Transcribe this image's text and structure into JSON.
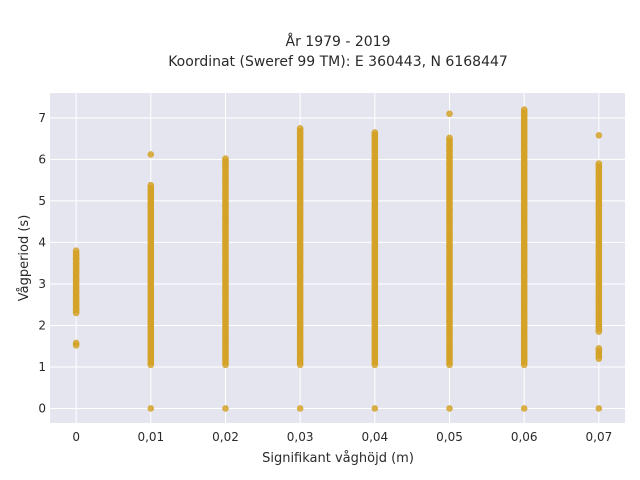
{
  "chart_data": {
    "type": "scatter",
    "title_lines": [
      "År 1979 - 2019",
      "Koordinat (Sweref 99 TM): E 360443, N 6168447"
    ],
    "xlabel": "Signifikant våghöjd (m)",
    "ylabel": "Vågperiod (s)",
    "x_ticks": [
      0,
      0.01,
      0.02,
      0.03,
      0.04,
      0.05,
      0.06,
      0.07
    ],
    "x_tick_labels": [
      "0",
      "0,01",
      "0,02",
      "0,03",
      "0,04",
      "0,05",
      "0,06",
      "0,07"
    ],
    "y_ticks": [
      0,
      1,
      2,
      3,
      4,
      5,
      6,
      7
    ],
    "y_tick_labels": [
      "0",
      "1",
      "2",
      "3",
      "4",
      "5",
      "6",
      "7"
    ],
    "xlim": [
      -0.0035,
      0.0735
    ],
    "ylim": [
      -0.35,
      7.6
    ],
    "grid": true,
    "legend": false,
    "colors": {
      "point": "#d4a227",
      "plot_bg": "#e5e5f0",
      "grid": "#ffffff"
    },
    "series": [
      {
        "points": [
          [
            0,
            1.52
          ],
          [
            0,
            1.58
          ],
          [
            0,
            2.3
          ],
          [
            0,
            2.4
          ],
          [
            0,
            2.5
          ],
          [
            0,
            2.6
          ],
          [
            0,
            2.7
          ],
          [
            0,
            2.8
          ],
          [
            0,
            3.1
          ],
          [
            0,
            3.3
          ],
          [
            0,
            3.4
          ],
          [
            0,
            3.5
          ],
          [
            0,
            3.6
          ],
          [
            0,
            3.7
          ],
          [
            0,
            3.8
          ],
          [
            0.01,
            0
          ],
          [
            0.01,
            1.05
          ],
          [
            0.01,
            1.15
          ],
          [
            0.01,
            1.3
          ],
          [
            0.01,
            1.45
          ],
          [
            0.01,
            1.6
          ],
          [
            0.01,
            1.8
          ],
          [
            0.01,
            2.0
          ],
          [
            0.01,
            2.3
          ],
          [
            0.01,
            2.6
          ],
          [
            0.01,
            2.9
          ],
          [
            0.01,
            3.2
          ],
          [
            0.01,
            3.5
          ],
          [
            0.01,
            3.8
          ],
          [
            0.01,
            4.1
          ],
          [
            0.01,
            4.4
          ],
          [
            0.01,
            4.6
          ],
          [
            0.01,
            4.8
          ],
          [
            0.01,
            4.9
          ],
          [
            0.01,
            5.05
          ],
          [
            0.01,
            5.38
          ],
          [
            0.01,
            6.12
          ],
          [
            0.02,
            0
          ],
          [
            0.02,
            1.05
          ],
          [
            0.02,
            1.2
          ],
          [
            0.02,
            1.4
          ],
          [
            0.02,
            1.6
          ],
          [
            0.02,
            1.9
          ],
          [
            0.02,
            2.2
          ],
          [
            0.02,
            2.5
          ],
          [
            0.02,
            2.8
          ],
          [
            0.02,
            3.1
          ],
          [
            0.02,
            3.4
          ],
          [
            0.02,
            3.7
          ],
          [
            0.02,
            4.0
          ],
          [
            0.02,
            4.3
          ],
          [
            0.02,
            4.6
          ],
          [
            0.02,
            4.9
          ],
          [
            0.02,
            5.2
          ],
          [
            0.02,
            5.5
          ],
          [
            0.02,
            5.8
          ],
          [
            0.02,
            5.95
          ],
          [
            0.02,
            6.02
          ],
          [
            0.03,
            0
          ],
          [
            0.03,
            1.05
          ],
          [
            0.03,
            1.2
          ],
          [
            0.03,
            1.4
          ],
          [
            0.03,
            1.7
          ],
          [
            0.03,
            2.0
          ],
          [
            0.03,
            2.3
          ],
          [
            0.03,
            2.6
          ],
          [
            0.03,
            2.9
          ],
          [
            0.03,
            3.2
          ],
          [
            0.03,
            3.5
          ],
          [
            0.03,
            3.8
          ],
          [
            0.03,
            4.1
          ],
          [
            0.03,
            4.4
          ],
          [
            0.03,
            4.7
          ],
          [
            0.03,
            5.0
          ],
          [
            0.03,
            5.3
          ],
          [
            0.03,
            5.6
          ],
          [
            0.03,
            5.9
          ],
          [
            0.03,
            6.1
          ],
          [
            0.03,
            6.3
          ],
          [
            0.03,
            6.45
          ],
          [
            0.03,
            6.62
          ],
          [
            0.03,
            6.75
          ],
          [
            0.04,
            0
          ],
          [
            0.04,
            1.05
          ],
          [
            0.04,
            1.2
          ],
          [
            0.04,
            1.5
          ],
          [
            0.04,
            1.8
          ],
          [
            0.04,
            2.1
          ],
          [
            0.04,
            2.4
          ],
          [
            0.04,
            2.7
          ],
          [
            0.04,
            3.0
          ],
          [
            0.04,
            3.3
          ],
          [
            0.04,
            3.6
          ],
          [
            0.04,
            3.9
          ],
          [
            0.04,
            4.2
          ],
          [
            0.04,
            4.5
          ],
          [
            0.04,
            4.8
          ],
          [
            0.04,
            5.1
          ],
          [
            0.04,
            5.4
          ],
          [
            0.04,
            5.7
          ],
          [
            0.04,
            6.0
          ],
          [
            0.04,
            6.2
          ],
          [
            0.04,
            6.38
          ],
          [
            0.04,
            6.6
          ],
          [
            0.04,
            6.65
          ],
          [
            0.05,
            0
          ],
          [
            0.05,
            1.05
          ],
          [
            0.05,
            1.2
          ],
          [
            0.05,
            1.5
          ],
          [
            0.05,
            1.8
          ],
          [
            0.05,
            2.1
          ],
          [
            0.05,
            2.4
          ],
          [
            0.05,
            2.7
          ],
          [
            0.05,
            3.0
          ],
          [
            0.05,
            3.3
          ],
          [
            0.05,
            3.6
          ],
          [
            0.05,
            3.9
          ],
          [
            0.05,
            4.2
          ],
          [
            0.05,
            4.5
          ],
          [
            0.05,
            4.8
          ],
          [
            0.05,
            5.1
          ],
          [
            0.05,
            5.4
          ],
          [
            0.05,
            5.7
          ],
          [
            0.05,
            5.9
          ],
          [
            0.05,
            6.05
          ],
          [
            0.05,
            6.2
          ],
          [
            0.05,
            6.35
          ],
          [
            0.05,
            6.52
          ],
          [
            0.05,
            7.1
          ],
          [
            0.06,
            0
          ],
          [
            0.06,
            1.05
          ],
          [
            0.06,
            1.15
          ],
          [
            0.06,
            1.3
          ],
          [
            0.06,
            1.45
          ],
          [
            0.06,
            1.7
          ],
          [
            0.06,
            2.0
          ],
          [
            0.06,
            2.3
          ],
          [
            0.06,
            2.6
          ],
          [
            0.06,
            2.9
          ],
          [
            0.06,
            3.2
          ],
          [
            0.06,
            3.5
          ],
          [
            0.06,
            3.8
          ],
          [
            0.06,
            4.1
          ],
          [
            0.06,
            4.4
          ],
          [
            0.06,
            4.7
          ],
          [
            0.06,
            5.0
          ],
          [
            0.06,
            5.3
          ],
          [
            0.06,
            5.6
          ],
          [
            0.06,
            5.9
          ],
          [
            0.06,
            6.2
          ],
          [
            0.06,
            6.45
          ],
          [
            0.06,
            6.65
          ],
          [
            0.06,
            6.9
          ],
          [
            0.06,
            7.05
          ],
          [
            0.06,
            7.12
          ],
          [
            0.06,
            7.2
          ],
          [
            0.07,
            0
          ],
          [
            0.07,
            1.2
          ],
          [
            0.07,
            1.45
          ],
          [
            0.07,
            1.85
          ],
          [
            0.07,
            2.0
          ],
          [
            0.07,
            2.3
          ],
          [
            0.07,
            2.6
          ],
          [
            0.07,
            2.9
          ],
          [
            0.07,
            3.2
          ],
          [
            0.07,
            3.5
          ],
          [
            0.07,
            3.8
          ],
          [
            0.07,
            4.1
          ],
          [
            0.07,
            4.4
          ],
          [
            0.07,
            4.7
          ],
          [
            0.07,
            4.9
          ],
          [
            0.07,
            5.05
          ],
          [
            0.07,
            5.35
          ],
          [
            0.07,
            5.55
          ],
          [
            0.07,
            5.8
          ],
          [
            0.07,
            5.9
          ],
          [
            0.07,
            6.58
          ]
        ]
      }
    ]
  }
}
